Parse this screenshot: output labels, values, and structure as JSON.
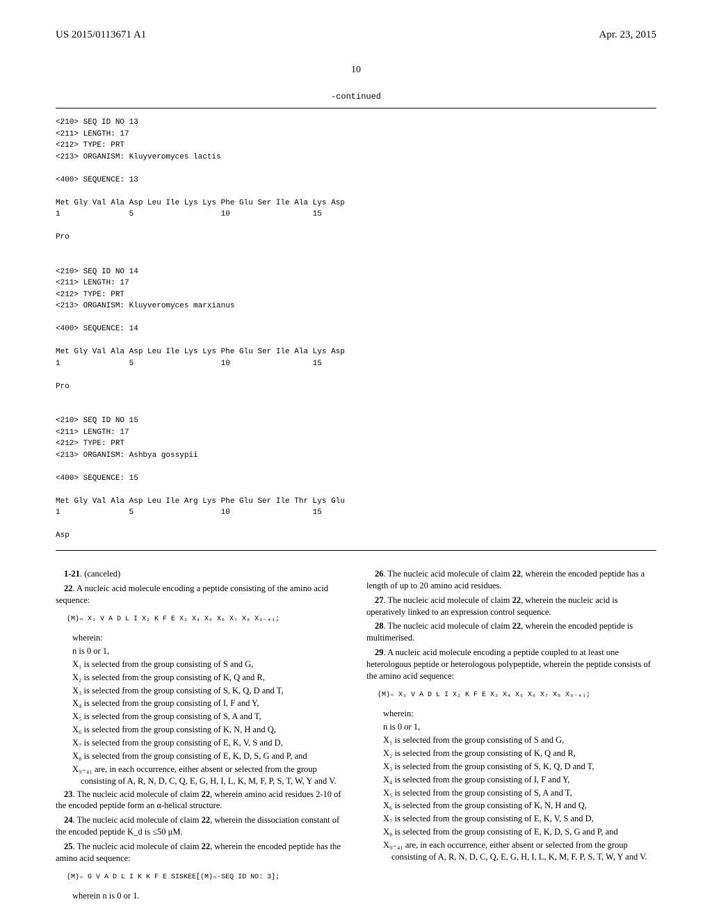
{
  "header": {
    "pub_number": "US 2015/0113671 A1",
    "pub_date": "Apr. 23, 2015"
  },
  "page_number": "10",
  "continued_label": "-continued",
  "seq_listing_text": "<210> SEQ ID NO 13\n<211> LENGTH: 17\n<212> TYPE: PRT\n<213> ORGANISM: Kluyveromyces lactis\n\n<400> SEQUENCE: 13\n\nMet Gly Val Ala Asp Leu Ile Lys Lys Phe Glu Ser Ile Ala Lys Asp\n1               5                   10                  15\n\nPro\n\n\n<210> SEQ ID NO 14\n<211> LENGTH: 17\n<212> TYPE: PRT\n<213> ORGANISM: Kluyveromyces marxianus\n\n<400> SEQUENCE: 14\n\nMet Gly Val Ala Asp Leu Ile Lys Lys Phe Glu Ser Ile Ala Lys Asp\n1               5                   10                  15\n\nPro\n\n\n<210> SEQ ID NO 15\n<211> LENGTH: 17\n<212> TYPE: PRT\n<213> ORGANISM: Ashbya gossypii\n\n<400> SEQUENCE: 15\n\nMet Gly Val Ala Asp Leu Ile Arg Lys Phe Glu Ser Ile Thr Lys Glu\n1               5                   10                  15\n\nAsp",
  "left_col": {
    "c1": "1-21",
    "c1_text": ". (canceled)",
    "c22_num": "22",
    "c22_text": ". A nucleic acid molecule encoding a peptide consisting of the amino acid sequence:",
    "formula22": "(M)ₙ X₁ V A D L I X₂ K F E X₃ X₄ X₅ X₆ X₇ X₈ X₉₋₄₁;",
    "wherein": "wherein:",
    "n_line": "n is 0 or 1,",
    "x1": "X₁ is selected from the group consisting of S and G,",
    "x2": "X₂ is selected from the group consisting of K, Q and R,",
    "x3": "X₃ is selected from the group consisting of S, K, Q, D and T,",
    "x4": "X₄ is selected from the group consisting of I, F and Y,",
    "x5": "X₅ is selected from the group consisting of S, A and T,",
    "x6": "X₆ is selected from the group consisting of K, N, H and Q,",
    "x7": "X₇ is selected from the group consisting of E, K, V, S and D,",
    "x8": "X₈ is selected from the group consisting of E, K, D, S, G and P, and",
    "x9": "X₉₋₄₁ are, in each occurrence, either absent or selected from the group consisting of A, R, N, D, C, Q, E, G, H, I, L, K, M, F, P, S, T, W, Y and V.",
    "c23_num": "23",
    "c23_text": ". The nucleic acid molecule of claim ",
    "c23_ref": "22",
    "c23_tail": ", wherein amino acid residues 2-10 of the encoded peptide form an α-helical structure.",
    "c24_num": "24",
    "c24_text": ". The nucleic acid molecule of claim ",
    "c24_ref": "22",
    "c24_tail": ", wherein the dissociation constant of the encoded peptide K_d is ≤50 μM.",
    "c25_num": "25",
    "c25_text": ". The nucleic acid molecule of claim ",
    "c25_ref": "22",
    "c25_tail": ", wherein the encoded peptide has the amino acid sequence:",
    "formula25": "(M)ₙ G V A D L I K K F E SISKEE[(M)ₙ-SEQ ID NO: 3];",
    "c25_footer": "wherein n is 0 or 1."
  },
  "right_col": {
    "c26_num": "26",
    "c26_text": ". The nucleic acid molecule of claim ",
    "c26_ref": "22",
    "c26_tail": ", wherein the encoded peptide has a length of up to 20 amino acid residues.",
    "c27_num": "27",
    "c27_text": ". The nucleic acid molecule of claim ",
    "c27_ref": "22",
    "c27_tail": ", wherein the nucleic acid is operatively linked to an expression control sequence.",
    "c28_num": "28",
    "c28_text": ". The nucleic acid molecule of claim ",
    "c28_ref": "22",
    "c28_tail": ", wherein the encoded peptide is multimerised.",
    "c29_num": "29",
    "c29_text": ". A nucleic acid molecule encoding a peptide coupled to at least one heterologous peptide or heterologous polypeptide, wherein the peptide consists of the amino acid sequence:",
    "formula29": "(M)ₙ X₁ V A D L I X₂ K F E X₃ X₄ X₅ X₆ X₇ X₈ X₉₋₄₁;",
    "wherein": "wherein:",
    "n_line": "n is 0 or 1,",
    "x1": "X₁ is selected from the group consisting of S and G,",
    "x2": "X₂ is selected from the group consisting of K, Q and R,",
    "x3": "X₃ is selected from the group consisting of S, K, Q, D and T,",
    "x4": "X₄ is selected from the group consisting of I, F and Y,",
    "x5": "X₅ is selected from the group consisting of S, A and T,",
    "x6": "X₆ is selected from the group consisting of K, N, H and Q,",
    "x7": "X₇ is selected from the group consisting of E, K, V, S and D,",
    "x8": "X₈ is selected from the group consisting of E, K, D, S, G and P, and",
    "x9": "X₉₋₄₁ are, in each occurrence, either absent or selected from the group consisting of A, R, N, D, C, Q, E, G, H, I, L, K, M, F, P, S, T, W, Y and V."
  }
}
